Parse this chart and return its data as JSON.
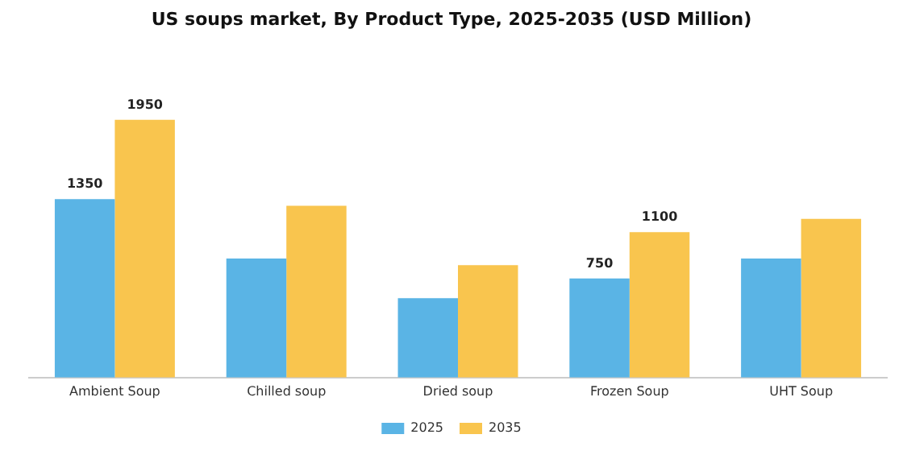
{
  "chart_data": {
    "type": "bar",
    "title": "US soups market, By Product Type, 2025-2035 (USD Million)",
    "categories": [
      "Ambient Soup",
      "Chilled soup",
      "Dried soup",
      "Frozen Soup",
      "UHT Soup"
    ],
    "series": [
      {
        "name": "2025",
        "color": "#5ab4e5",
        "values": [
          1350,
          900,
          600,
          750,
          900
        ],
        "value_labels": [
          "1350",
          null,
          null,
          "750",
          null
        ]
      },
      {
        "name": "2035",
        "color": "#f9c54e",
        "values": [
          1950,
          1300,
          850,
          1100,
          1200
        ],
        "value_labels": [
          "1950",
          null,
          null,
          "1100",
          null
        ]
      }
    ],
    "grid": false,
    "legend": "bottom"
  }
}
